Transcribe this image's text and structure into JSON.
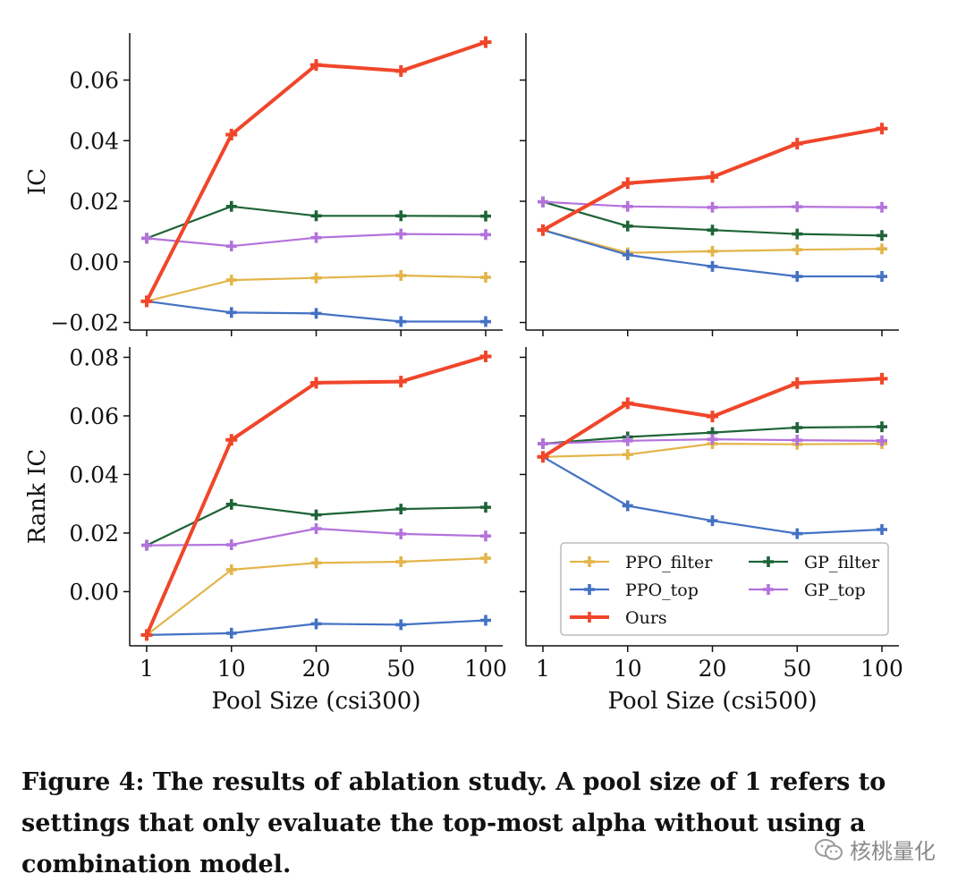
{
  "chart_data": {
    "type": "line",
    "categories": [
      "1",
      "10",
      "20",
      "50",
      "100"
    ],
    "colors": {
      "PPO_filter": "#e3b54a",
      "PPO_top": "#4472c4",
      "Ours": "#f0462a",
      "GP_filter": "#1e6437",
      "GP_top": "#b472dc"
    },
    "legend": [
      {
        "key": "PPO_filter",
        "label": "PPO_filter"
      },
      {
        "key": "GP_filter",
        "label": "GP_filter"
      },
      {
        "key": "PPO_top",
        "label": "PPO_top"
      },
      {
        "key": "GP_top",
        "label": "GP_top"
      },
      {
        "key": "Ours",
        "label": "Ours"
      }
    ],
    "legend_position": "lower-right",
    "panels": [
      {
        "id": "ic-csi300",
        "row": 0,
        "col": 0,
        "ylabel": "IC",
        "xlabel": "",
        "ylim": [
          -0.0225,
          0.0755
        ],
        "yticks": [
          -0.02,
          0.0,
          0.02,
          0.04,
          0.06
        ],
        "ytick_labels": [
          "−0.02",
          "0.00",
          "0.02",
          "0.04",
          "0.06"
        ],
        "show_yticklabels": true,
        "show_xticklabels": false,
        "series": [
          {
            "name": "PPO_filter",
            "values": [
              -0.013,
              -0.006,
              -0.0053,
              -0.0045,
              -0.0051
            ]
          },
          {
            "name": "PPO_top",
            "values": [
              -0.013,
              -0.0167,
              -0.017,
              -0.0197,
              -0.0197
            ]
          },
          {
            "name": "GP_filter",
            "values": [
              0.0078,
              0.0183,
              0.0152,
              0.0152,
              0.0151
            ]
          },
          {
            "name": "GP_top",
            "values": [
              0.0078,
              0.0052,
              0.008,
              0.0092,
              0.009
            ]
          },
          {
            "name": "Ours",
            "values": [
              -0.013,
              0.042,
              0.065,
              0.063,
              0.0725
            ]
          }
        ]
      },
      {
        "id": "ic-csi500",
        "row": 0,
        "col": 1,
        "ylabel": "",
        "xlabel": "",
        "ylim": [
          -0.0225,
          0.0755
        ],
        "yticks": [
          -0.02,
          0.0,
          0.02,
          0.04,
          0.06
        ],
        "ytick_labels": [
          "",
          "",
          "",
          "",
          ""
        ],
        "show_yticklabels": false,
        "show_xticklabels": false,
        "series": [
          {
            "name": "PPO_filter",
            "values": [
              0.0105,
              0.003,
              0.0035,
              0.004,
              0.0043
            ]
          },
          {
            "name": "PPO_top",
            "values": [
              0.0105,
              0.0023,
              -0.0015,
              -0.0048,
              -0.0048
            ]
          },
          {
            "name": "GP_filter",
            "values": [
              0.0198,
              0.0118,
              0.0105,
              0.0092,
              0.0087
            ]
          },
          {
            "name": "GP_top",
            "values": [
              0.0198,
              0.0183,
              0.018,
              0.0182,
              0.018
            ]
          },
          {
            "name": "Ours",
            "values": [
              0.0105,
              0.026,
              0.028,
              0.039,
              0.044
            ]
          }
        ]
      },
      {
        "id": "rankic-csi300",
        "row": 1,
        "col": 0,
        "ylabel": "Rank IC",
        "xlabel": "Pool Size (csi300)",
        "ylim": [
          -0.0185,
          0.0835
        ],
        "yticks": [
          0.0,
          0.02,
          0.04,
          0.06,
          0.08
        ],
        "ytick_labels": [
          "0.00",
          "0.02",
          "0.04",
          "0.06",
          "0.08"
        ],
        "show_yticklabels": true,
        "show_xticklabels": true,
        "series": [
          {
            "name": "PPO_filter",
            "values": [
              -0.0148,
              0.0075,
              0.0098,
              0.0102,
              0.0114
            ]
          },
          {
            "name": "PPO_top",
            "values": [
              -0.0148,
              -0.0142,
              -0.011,
              -0.0113,
              -0.0098
            ]
          },
          {
            "name": "GP_filter",
            "values": [
              0.0158,
              0.0298,
              0.0262,
              0.0282,
              0.0288
            ]
          },
          {
            "name": "GP_top",
            "values": [
              0.0158,
              0.016,
              0.0215,
              0.0197,
              0.019
            ]
          },
          {
            "name": "Ours",
            "values": [
              -0.0148,
              0.0518,
              0.0713,
              0.0717,
              0.0803
            ]
          }
        ]
      },
      {
        "id": "rankic-csi500",
        "row": 1,
        "col": 1,
        "ylabel": "",
        "xlabel": "Pool Size (csi500)",
        "ylim": [
          -0.0185,
          0.0835
        ],
        "yticks": [
          0.0,
          0.02,
          0.04,
          0.06,
          0.08
        ],
        "ytick_labels": [
          "",
          "",
          "",
          "",
          ""
        ],
        "show_yticklabels": false,
        "show_xticklabels": true,
        "series": [
          {
            "name": "PPO_filter",
            "values": [
              0.046,
              0.0468,
              0.0505,
              0.0503,
              0.0505
            ]
          },
          {
            "name": "PPO_top",
            "values": [
              0.046,
              0.0293,
              0.0242,
              0.0198,
              0.0212
            ]
          },
          {
            "name": "GP_filter",
            "values": [
              0.0505,
              0.0528,
              0.0543,
              0.056,
              0.0563
            ]
          },
          {
            "name": "GP_top",
            "values": [
              0.0505,
              0.0515,
              0.052,
              0.0517,
              0.0515
            ]
          },
          {
            "name": "Ours",
            "values": [
              0.046,
              0.0643,
              0.0598,
              0.0712,
              0.0727
            ]
          }
        ]
      }
    ]
  },
  "caption": "Figure 4: The results of ablation study. A pool size of 1 refers to settings that only evaluate the top-most alpha without using a combination model.",
  "watermark": {
    "text": "核桃量化",
    "icon": "wechat-icon"
  }
}
